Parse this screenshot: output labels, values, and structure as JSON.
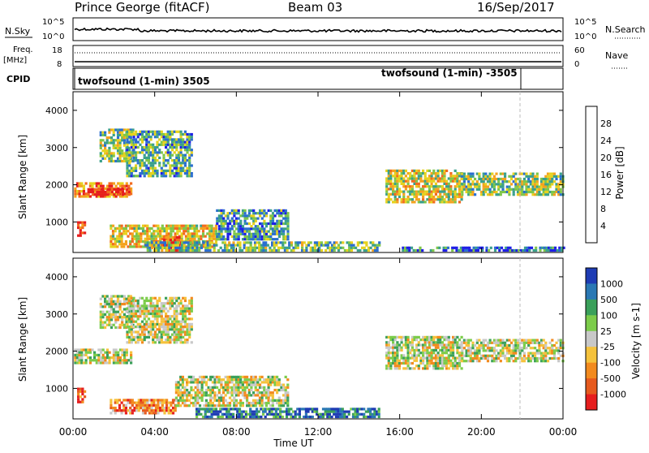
{
  "header": {
    "title": "Prince George (fitACF)",
    "beam": "Beam 03",
    "date": "16/Sep/2017"
  },
  "panel_noise": {
    "left_label": "N.Sky",
    "right_label": "N.Search",
    "left_ticks": [
      "10^5",
      "10^0"
    ],
    "right_ticks": [
      "10^5",
      "10^0"
    ]
  },
  "panel_freq": {
    "left_label_1": "Freq.",
    "left_label_2": "[MHz]",
    "left_ticks": [
      "18",
      "8"
    ],
    "right_label": "Nave",
    "right_ticks": [
      "60",
      "0"
    ]
  },
  "panel_cpid": {
    "label": "CPID",
    "program_1": "twofsound (1-min) 3505",
    "program_2": "twofsound (1-min) -3505"
  },
  "x_axis": {
    "title": "Time UT",
    "ticks": [
      "00:00",
      "04:00",
      "08:00",
      "12:00",
      "16:00",
      "20:00",
      "00:00"
    ]
  },
  "chart_data": [
    {
      "type": "heatmap",
      "title": "Power",
      "ylabel": "Slant Range [km]",
      "y_ticks": [
        "1000",
        "2000",
        "3000",
        "4000"
      ],
      "ylim": [
        180,
        4500
      ],
      "xlabel": "Time UT",
      "xlim_hours": [
        0,
        24
      ],
      "colorbar_label": "Power [dB]",
      "colorbar_ticks": [
        "4",
        "8",
        "12",
        "16",
        "20",
        "24",
        "28"
      ],
      "colorbar_colors": [
        "#1e1ee6",
        "#2a6ed0",
        "#3aa08a",
        "#7fc64a",
        "#e6d21e",
        "#f4a21e",
        "#f26a1e",
        "#e61e1e"
      ],
      "bands": [
        {
          "t": [
            0.05,
            2.8
          ],
          "r": [
            1650,
            2050
          ],
          "level": 0.75
        },
        {
          "t": [
            0.7,
            2.8
          ],
          "r": [
            1700,
            1900
          ],
          "level": 0.95
        },
        {
          "t": [
            0.2,
            0.6
          ],
          "r": [
            600,
            1000
          ],
          "level": 0.9
        },
        {
          "t": [
            1.3,
            2.9
          ],
          "r": [
            2600,
            3500
          ],
          "level": 0.45
        },
        {
          "t": [
            2.6,
            5.8
          ],
          "r": [
            2200,
            3400
          ],
          "level": 0.35
        },
        {
          "t": [
            1.8,
            7.0
          ],
          "r": [
            300,
            900
          ],
          "level": 0.6
        },
        {
          "t": [
            4.3,
            5.3
          ],
          "r": [
            200,
            600
          ],
          "level": 0.95
        },
        {
          "t": [
            7.0,
            10.5
          ],
          "r": [
            500,
            1300
          ],
          "level": 0.3
        },
        {
          "t": [
            3.5,
            15.0
          ],
          "r": [
            200,
            450
          ],
          "level": 0.4
        },
        {
          "t": [
            15.3,
            19.0
          ],
          "r": [
            1500,
            2400
          ],
          "level": 0.55
        },
        {
          "t": [
            19.0,
            24.0
          ],
          "r": [
            1700,
            2300
          ],
          "level": 0.45
        },
        {
          "t": [
            16.0,
            24.0
          ],
          "r": [
            200,
            320
          ],
          "level": 0.2
        }
      ]
    },
    {
      "type": "heatmap",
      "title": "Velocity",
      "ylabel": "Slant Range [km]",
      "y_ticks": [
        "1000",
        "2000",
        "3000",
        "4000"
      ],
      "ylim": [
        180,
        4500
      ],
      "xlabel": "Time UT",
      "xlim_hours": [
        0,
        24
      ],
      "colorbar_label": "Velocity [m s-1]",
      "colorbar_ticks": [
        "1000",
        "500",
        "100",
        "25",
        "-25",
        "-100",
        "-500",
        "-1000"
      ],
      "colorbar_colors": [
        "#1e3cb4",
        "#2a78b4",
        "#3aa05a",
        "#7ccc4a",
        "#c8c8c8",
        "#f5c23c",
        "#f28a1e",
        "#e65a1e",
        "#e61e1e"
      ],
      "bands": [
        {
          "t": [
            0.05,
            2.8
          ],
          "r": [
            1650,
            2050
          ],
          "level": 0.5
        },
        {
          "t": [
            0.2,
            0.6
          ],
          "r": [
            600,
            1000
          ],
          "level": 0.9
        },
        {
          "t": [
            1.3,
            2.9
          ],
          "r": [
            2600,
            3500
          ],
          "level": 0.5
        },
        {
          "t": [
            2.6,
            5.8
          ],
          "r": [
            2200,
            3400
          ],
          "level": 0.5
        },
        {
          "t": [
            1.8,
            5.0
          ],
          "r": [
            300,
            700
          ],
          "level": 0.75
        },
        {
          "t": [
            5.0,
            10.5
          ],
          "r": [
            500,
            1300
          ],
          "level": 0.5
        },
        {
          "t": [
            6.0,
            15.0
          ],
          "r": [
            200,
            450
          ],
          "level": 0.15
        },
        {
          "t": [
            15.3,
            19.0
          ],
          "r": [
            1500,
            2400
          ],
          "level": 0.5
        },
        {
          "t": [
            19.0,
            24.0
          ],
          "r": [
            1700,
            2300
          ],
          "level": 0.5
        }
      ]
    }
  ]
}
